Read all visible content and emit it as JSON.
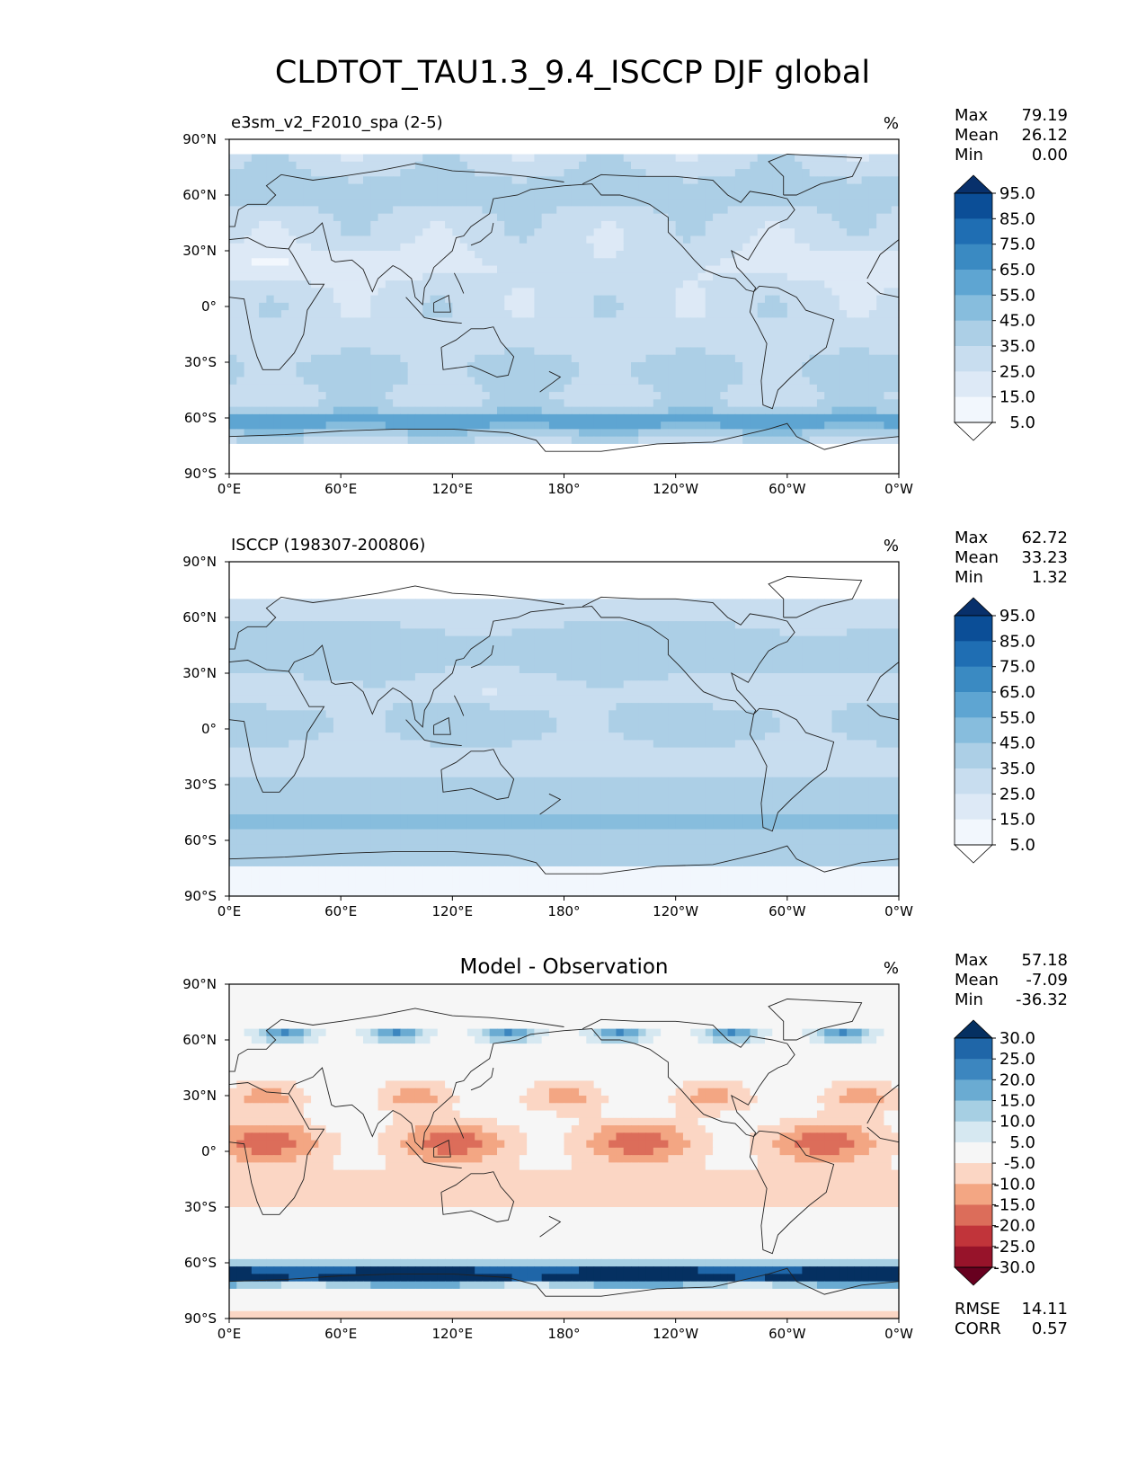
{
  "title": "CLDTOT_TAU1.3_9.4_ISCCP DJF global",
  "chart_data": [
    {
      "type": "heatmap",
      "panel": "test",
      "title_left": "e3sm_v2_F2010_spa (2-5)",
      "title_center": "",
      "units": "%",
      "stats": [
        {
          "label": "Max",
          "value": "79.19"
        },
        {
          "label": "Mean",
          "value": "26.12"
        },
        {
          "label": "Min",
          "value": "0.00"
        }
      ],
      "colorbar": {
        "levels": [
          "95.0",
          "85.0",
          "75.0",
          "65.0",
          "55.0",
          "45.0",
          "35.0",
          "25.0",
          "15.0",
          "5.0"
        ],
        "colors": [
          "#08306b",
          "#0b4e97",
          "#1f6eb3",
          "#3a8ac2",
          "#5ea5d2",
          "#87bddd",
          "#accfe6",
          "#c8ddef",
          "#dde9f6",
          "#f2f7fd",
          "#ffffff"
        ]
      },
      "xticks": [
        "0°E",
        "60°E",
        "120°E",
        "180°",
        "120°W",
        "60°W",
        "0°W"
      ],
      "yticks": [
        "90°N",
        "60°N",
        "30°N",
        "0°",
        "30°S",
        "60°S",
        "90°S"
      ],
      "xlim": [
        0,
        360
      ],
      "ylim": [
        -90,
        90
      ]
    },
    {
      "type": "heatmap",
      "panel": "reference",
      "title_left": "ISCCP (198307-200806)",
      "title_center": "",
      "units": "%",
      "stats": [
        {
          "label": "Max",
          "value": "62.72"
        },
        {
          "label": "Mean",
          "value": "33.23"
        },
        {
          "label": "Min",
          "value": "1.32"
        }
      ],
      "colorbar": {
        "levels": [
          "95.0",
          "85.0",
          "75.0",
          "65.0",
          "55.0",
          "45.0",
          "35.0",
          "25.0",
          "15.0",
          "5.0"
        ],
        "colors": [
          "#08306b",
          "#0b4e97",
          "#1f6eb3",
          "#3a8ac2",
          "#5ea5d2",
          "#87bddd",
          "#accfe6",
          "#c8ddef",
          "#dde9f6",
          "#f2f7fd",
          "#ffffff"
        ]
      },
      "xticks": [
        "0°E",
        "60°E",
        "120°E",
        "180°",
        "120°W",
        "60°W",
        "0°W"
      ],
      "yticks": [
        "90°N",
        "60°N",
        "30°N",
        "0°",
        "30°S",
        "60°S",
        "90°S"
      ],
      "xlim": [
        0,
        360
      ],
      "ylim": [
        -90,
        90
      ]
    },
    {
      "type": "heatmap",
      "panel": "difference",
      "title_left": "",
      "title_center": "Model - Observation",
      "units": "%",
      "stats": [
        {
          "label": "Max",
          "value": "57.18"
        },
        {
          "label": "Mean",
          "value": "-7.09"
        },
        {
          "label": "Min",
          "value": "-36.32"
        }
      ],
      "extra_stats": [
        {
          "label": "RMSE",
          "value": "14.11"
        },
        {
          "label": "CORR",
          "value": "0.57"
        }
      ],
      "colorbar": {
        "levels": [
          "30.0",
          "25.0",
          "20.0",
          "15.0",
          "10.0",
          "5.0",
          "-5.0",
          "-10.0",
          "-15.0",
          "-20.0",
          "-25.0",
          "-30.0"
        ],
        "colors": [
          "#053061",
          "#1f66a8",
          "#3c86bf",
          "#6aabd2",
          "#a6cfe3",
          "#d6e8f1",
          "#f6f6f6",
          "#fbd6c4",
          "#f3a683",
          "#dc6d5a",
          "#c1343a",
          "#97132a",
          "#67001f"
        ]
      },
      "xticks": [
        "0°E",
        "60°E",
        "120°E",
        "180°",
        "120°W",
        "60°W",
        "0°W"
      ],
      "yticks": [
        "90°N",
        "60°N",
        "30°N",
        "0°",
        "30°S",
        "60°S",
        "90°S"
      ],
      "xlim": [
        0,
        360
      ],
      "ylim": [
        -90,
        90
      ]
    }
  ]
}
